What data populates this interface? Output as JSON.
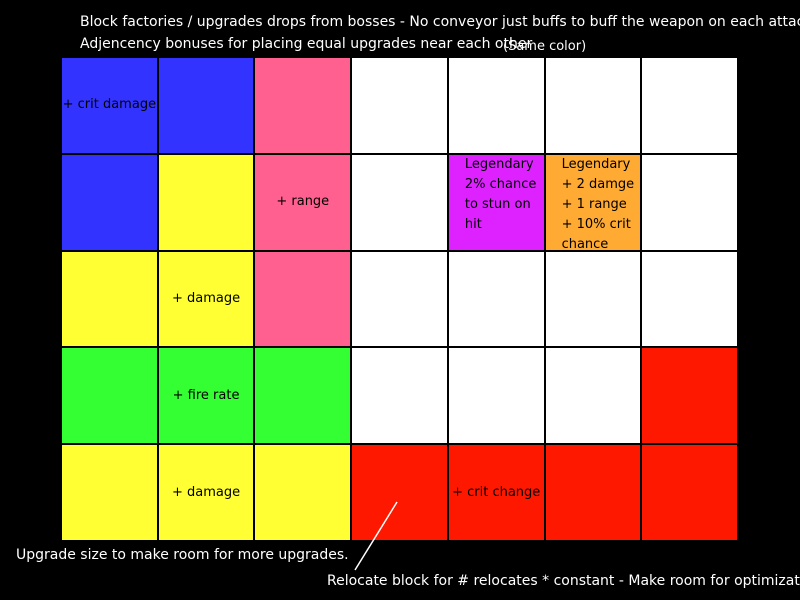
{
  "header": {
    "line1": "Block factories / upgrades drops from bosses - No conveyor just buffs to buff the weapon on each attack",
    "line2": "Adjencency bonuses for placing equal upgrades near each other",
    "line2_suffix": "(Same color)"
  },
  "colors": {
    "blue": "#3333ff",
    "pink": "#ff6090",
    "yellow": "#ffff33",
    "green": "#33ff33",
    "purple": "#dd22ff",
    "orange": "#ffaa33",
    "red": "#ff1800",
    "empty": "#ffffff"
  },
  "grid": {
    "columns": 7,
    "rows": 5,
    "cells": [
      [
        "blue",
        "blue",
        "pink",
        "empty",
        "empty",
        "empty",
        "empty"
      ],
      [
        "blue",
        "yellow",
        "pink",
        "empty",
        "purple",
        "orange",
        "empty"
      ],
      [
        "yellow",
        "yellow",
        "pink",
        "empty",
        "empty",
        "empty",
        "empty"
      ],
      [
        "green",
        "green",
        "green",
        "empty",
        "empty",
        "empty",
        "red"
      ],
      [
        "yellow",
        "yellow",
        "yellow",
        "red",
        "red",
        "red",
        "red"
      ]
    ],
    "labels": [
      {
        "row": 0,
        "col": 0,
        "lines": [
          "+ crit damage"
        ],
        "align": "center"
      },
      {
        "row": 1,
        "col": 2,
        "lines": [
          "+ range"
        ],
        "align": "center"
      },
      {
        "row": 1,
        "col": 4,
        "lines": [
          "Legendary",
          "2% chance",
          "to stun on",
          "hit"
        ],
        "align": "left"
      },
      {
        "row": 1,
        "col": 5,
        "lines": [
          "Legendary",
          "+ 2 damge",
          "+ 1 range",
          "+ 10% crit",
          "chance"
        ],
        "align": "left"
      },
      {
        "row": 2,
        "col": 1,
        "lines": [
          "+ damage"
        ],
        "align": "center"
      },
      {
        "row": 3,
        "col": 1,
        "lines": [
          "+ fire rate"
        ],
        "align": "center"
      },
      {
        "row": 4,
        "col": 1,
        "lines": [
          "+ damage"
        ],
        "align": "center"
      },
      {
        "row": 4,
        "col": 4,
        "lines": [
          "+ crit change"
        ],
        "align": "center"
      }
    ]
  },
  "footer": {
    "upgrade_note": "Upgrade size to make room for more upgrades.",
    "relocate_note": "Relocate block for # relocates * constant - Make room for optimization"
  }
}
